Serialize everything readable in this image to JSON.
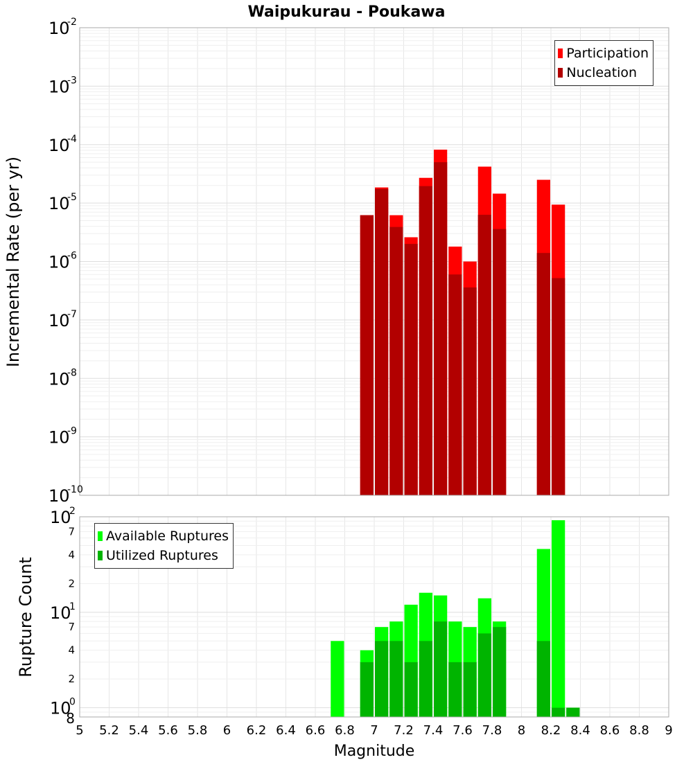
{
  "chart_data": {
    "title": "Waipukurau - Poukawa",
    "x_axis": {
      "label": "Magnitude",
      "range": [
        5,
        9
      ],
      "ticks": [
        "5",
        "5.2",
        "5.4",
        "5.6",
        "5.8",
        "6",
        "6.2",
        "6.4",
        "6.6",
        "6.8",
        "7",
        "7.2",
        "7.4",
        "7.6",
        "7.8",
        "8",
        "8.2",
        "8.4",
        "8.6",
        "8.8",
        "9"
      ]
    },
    "bin_width": 0.1,
    "top_chart": {
      "type": "bar",
      "y_scale": "log",
      "ylabel": "Incremental Rate (per yr)",
      "ylim": [
        1e-10,
        0.01
      ],
      "y_tick_exponents": [
        "-2",
        "-3",
        "-4",
        "-5",
        "-6",
        "-7",
        "-8",
        "-9",
        "-10"
      ],
      "legend_position": "top-right",
      "series": [
        {
          "name": "Participation",
          "color": "#ff0000",
          "points": [
            {
              "x": 6.95,
              "y": 6.2e-06
            },
            {
              "x": 7.05,
              "y": 1.85e-05
            },
            {
              "x": 7.15,
              "y": 6.2e-06
            },
            {
              "x": 7.25,
              "y": 2.6e-06
            },
            {
              "x": 7.35,
              "y": 2.7e-05
            },
            {
              "x": 7.45,
              "y": 8.2e-05
            },
            {
              "x": 7.55,
              "y": 1.8e-06
            },
            {
              "x": 7.65,
              "y": 1e-06
            },
            {
              "x": 7.75,
              "y": 4.2e-05
            },
            {
              "x": 7.85,
              "y": 1.45e-05
            },
            {
              "x": 8.15,
              "y": 2.5e-05
            },
            {
              "x": 8.25,
              "y": 9.4e-06
            }
          ]
        },
        {
          "name": "Nucleation",
          "color": "#b20000",
          "points": [
            {
              "x": 6.95,
              "y": 6.2e-06
            },
            {
              "x": 7.05,
              "y": 1.75e-05
            },
            {
              "x": 7.15,
              "y": 3.9e-06
            },
            {
              "x": 7.25,
              "y": 2e-06
            },
            {
              "x": 7.35,
              "y": 1.95e-05
            },
            {
              "x": 7.45,
              "y": 5e-05
            },
            {
              "x": 7.55,
              "y": 6e-07
            },
            {
              "x": 7.65,
              "y": 3.6e-07
            },
            {
              "x": 7.75,
              "y": 6.3e-06
            },
            {
              "x": 7.85,
              "y": 3.6e-06
            },
            {
              "x": 8.15,
              "y": 1.4e-06
            },
            {
              "x": 8.25,
              "y": 5.2e-07
            }
          ]
        }
      ]
    },
    "bottom_chart": {
      "type": "bar",
      "y_scale": "log",
      "ylabel": "Rupture Count",
      "ylim": [
        0.8,
        100
      ],
      "y_tick_labels": [
        {
          "value": 100,
          "base": "10",
          "exp": "2"
        },
        {
          "value": 70,
          "label": "7"
        },
        {
          "value": 40,
          "label": "4"
        },
        {
          "value": 20,
          "label": "2"
        },
        {
          "value": 10,
          "base": "10",
          "exp": "1"
        },
        {
          "value": 7,
          "label": "7"
        },
        {
          "value": 4,
          "label": "4"
        },
        {
          "value": 2,
          "label": "2"
        },
        {
          "value": 1,
          "base": "10",
          "exp": "0"
        },
        {
          "value": 0.8,
          "label": "8"
        }
      ],
      "legend_position": "top-left",
      "series": [
        {
          "name": "Available Ruptures",
          "color": "#00ff00",
          "points": [
            {
              "x": 6.75,
              "y": 5
            },
            {
              "x": 6.95,
              "y": 4
            },
            {
              "x": 7.05,
              "y": 7
            },
            {
              "x": 7.15,
              "y": 8
            },
            {
              "x": 7.25,
              "y": 12
            },
            {
              "x": 7.35,
              "y": 16
            },
            {
              "x": 7.45,
              "y": 15
            },
            {
              "x": 7.55,
              "y": 8
            },
            {
              "x": 7.65,
              "y": 7
            },
            {
              "x": 7.75,
              "y": 14
            },
            {
              "x": 7.85,
              "y": 8
            },
            {
              "x": 8.15,
              "y": 46
            },
            {
              "x": 8.25,
              "y": 92
            },
            {
              "x": 8.35,
              "y": 1
            }
          ]
        },
        {
          "name": "Utilized Ruptures",
          "color": "#00b400",
          "points": [
            {
              "x": 6.95,
              "y": 3
            },
            {
              "x": 7.05,
              "y": 5
            },
            {
              "x": 7.15,
              "y": 5
            },
            {
              "x": 7.25,
              "y": 3
            },
            {
              "x": 7.35,
              "y": 5
            },
            {
              "x": 7.45,
              "y": 8
            },
            {
              "x": 7.55,
              "y": 3
            },
            {
              "x": 7.65,
              "y": 3
            },
            {
              "x": 7.75,
              "y": 6
            },
            {
              "x": 7.85,
              "y": 7
            },
            {
              "x": 8.15,
              "y": 5
            },
            {
              "x": 8.25,
              "y": 1
            },
            {
              "x": 8.35,
              "y": 1
            }
          ]
        }
      ]
    }
  }
}
